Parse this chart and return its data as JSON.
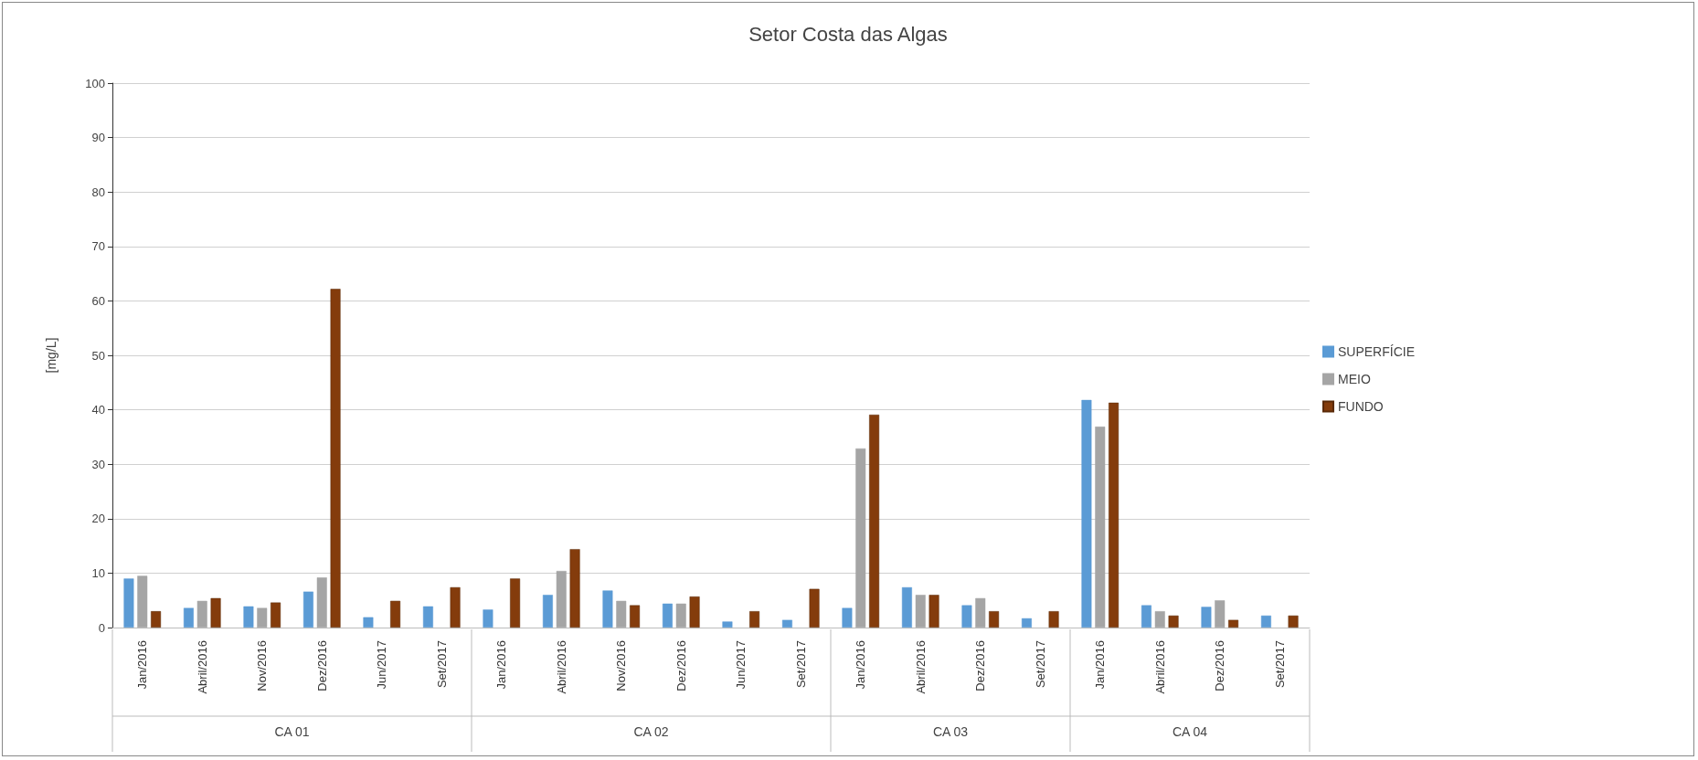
{
  "chart_data": {
    "type": "bar",
    "title": "Setor Costa das Algas",
    "ylabel": "[mg/L]",
    "categories": [
      "Jan/2016",
      "Abril/2016",
      "Nov/2016",
      "Dez/2016",
      "Jun/2017",
      "Set/2017",
      "Jan/2016",
      "Abril/2016",
      "Nov/2016",
      "Dez/2016",
      "Jun/2017",
      "Set/2017",
      "Jan/2016",
      "Abril/2016",
      "Dez/2016",
      "Set/2017",
      "Jan/2016",
      "Abril/2016",
      "Dez/2016",
      "Set/2017"
    ],
    "series": [
      {
        "name": "SUPERFÍCIE",
        "color": "#5b9bd5",
        "values": [
          9.0,
          3.6,
          3.9,
          6.6,
          1.9,
          3.9,
          3.3,
          6.0,
          6.8,
          4.4,
          1.1,
          1.4,
          3.6,
          7.4,
          4.1,
          1.7,
          41.8,
          4.1,
          3.8,
          2.2
        ]
      },
      {
        "name": "MEIO",
        "color": "#a5a5a5",
        "values": [
          9.5,
          4.9,
          3.6,
          9.2,
          null,
          null,
          null,
          10.4,
          4.9,
          4.4,
          null,
          null,
          32.9,
          6.0,
          5.4,
          null,
          36.9,
          3.0,
          5.0,
          null
        ]
      },
      {
        "name": "FUNDO",
        "color": "#843c0c",
        "values": [
          3.0,
          5.4,
          4.6,
          62.2,
          4.9,
          7.4,
          9.0,
          14.4,
          4.1,
          5.7,
          3.0,
          7.1,
          39.1,
          6.0,
          3.0,
          3.0,
          41.3,
          2.2,
          1.4,
          2.2
        ]
      }
    ],
    "ylim": [
      0,
      100
    ],
    "yticks": [
      0,
      10,
      20,
      30,
      40,
      50,
      60,
      70,
      80,
      90,
      100
    ],
    "grid": "y",
    "legend": "right",
    "annotations": [
      "CA 01",
      "CA 02",
      "CA 03",
      "CA 04"
    ]
  }
}
